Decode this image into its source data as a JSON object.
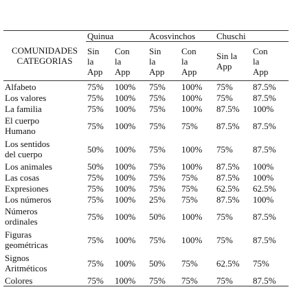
{
  "table": {
    "corner": [
      "COMUNIDADES",
      "CATEGORIAS"
    ],
    "groups": [
      "Quinua",
      "Acosvinchos",
      "Chuschi"
    ],
    "subheaders": [
      [
        "Sin",
        "la",
        "App"
      ],
      [
        "Con",
        "la",
        "App"
      ],
      [
        "Sin",
        "la",
        "App"
      ],
      [
        "Con",
        "la",
        "App"
      ],
      [
        "Sin la",
        "App"
      ],
      [
        "Con",
        "la",
        "App"
      ]
    ],
    "rows": [
      {
        "label": [
          "Alfabeto"
        ],
        "cells": [
          "75%",
          "100%",
          "75%",
          "100%",
          "75%",
          "87.5%"
        ]
      },
      {
        "label": [
          "Los valores"
        ],
        "cells": [
          "75%",
          "100%",
          "75%",
          "100%",
          "75%",
          "87.5%"
        ]
      },
      {
        "label": [
          "La familia"
        ],
        "cells": [
          "75%",
          "100%",
          "75%",
          "100%",
          "87.5%",
          "100%"
        ]
      },
      {
        "label": [
          "El cuerpo",
          "Humano"
        ],
        "cells": [
          "75%",
          "100%",
          "75%",
          "75%",
          "87.5%",
          "87.5%"
        ]
      },
      {
        "label": [
          "Los sentidos",
          "del cuerpo"
        ],
        "cells": [
          "50%",
          "100%",
          "75%",
          "100%",
          "75%",
          "87.5%"
        ]
      },
      {
        "label": [
          "Los animales"
        ],
        "cells": [
          "50%",
          "100%",
          "75%",
          "100%",
          "87.5%",
          "100%"
        ]
      },
      {
        "label": [
          "Las cosas"
        ],
        "cells": [
          "75%",
          "100%",
          "75%",
          "75%",
          "87.5%",
          "100%"
        ]
      },
      {
        "label": [
          "Expresiones"
        ],
        "cells": [
          "75%",
          "100%",
          "75%",
          "75%",
          "62.5%",
          "62.5%"
        ]
      },
      {
        "label": [
          "Los números"
        ],
        "cells": [
          "75%",
          "100%",
          "25%",
          "75%",
          "87.5%",
          "100%"
        ]
      },
      {
        "label": [
          "Números",
          "ordinales"
        ],
        "cells": [
          "75%",
          "100%",
          "50%",
          "100%",
          "75%",
          "87.5%"
        ]
      },
      {
        "label": [
          "Figuras",
          "geométricas"
        ],
        "cells": [
          "75%",
          "100%",
          "75%",
          "100%",
          "75%",
          "87.5%"
        ]
      },
      {
        "label": [
          "Signos",
          "Aritméticos"
        ],
        "cells": [
          "75%",
          "100%",
          "50%",
          "75%",
          "62.5%",
          "75%"
        ]
      },
      {
        "label": [
          "Colores"
        ],
        "cells": [
          "75%",
          "100%",
          "75%",
          "75%",
          "75%",
          "87.5%"
        ]
      }
    ]
  }
}
